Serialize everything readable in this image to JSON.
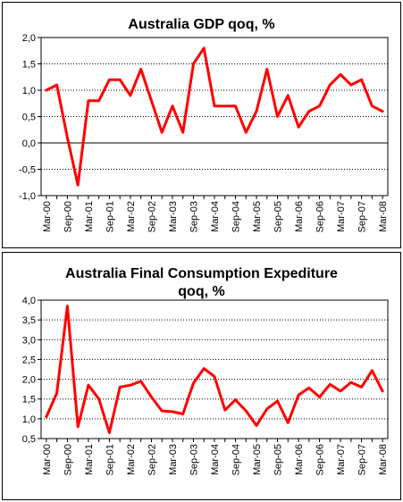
{
  "chart_data": [
    {
      "type": "line",
      "title": "Australia GDP qoq, %",
      "xlabel": "",
      "ylabel": "",
      "ylim": [
        -1.0,
        2.0
      ],
      "yticks": [
        "2,0",
        "1,5",
        "1,0",
        "0,5",
        "0,0",
        "-0,5",
        "-1,0"
      ],
      "grid": true,
      "legend": "none",
      "color": "#ff0000",
      "x_tick_labels": [
        "Mar-00",
        "Sep-00",
        "Mar-01",
        "Sep-01",
        "Mar-02",
        "Sep-02",
        "Mar-03",
        "Sep-03",
        "Mar-04",
        "Sep-04",
        "Mar-05",
        "Sep-05",
        "Mar-06",
        "Sep-06",
        "Mar-07",
        "Sep-07",
        "Mar-08"
      ],
      "x": [
        "Mar-00",
        "Jun-00",
        "Sep-00",
        "Dec-00",
        "Mar-01",
        "Jun-01",
        "Sep-01",
        "Dec-01",
        "Mar-02",
        "Jun-02",
        "Sep-02",
        "Dec-02",
        "Mar-03",
        "Jun-03",
        "Sep-03",
        "Dec-03",
        "Mar-04",
        "Jun-04",
        "Sep-04",
        "Dec-04",
        "Mar-05",
        "Jun-05",
        "Sep-05",
        "Dec-05",
        "Mar-06",
        "Jun-06",
        "Sep-06",
        "Dec-06",
        "Mar-07",
        "Jun-07",
        "Sep-07",
        "Dec-07",
        "Mar-08"
      ],
      "values": [
        1.0,
        1.1,
        0.1,
        -0.8,
        0.8,
        0.8,
        1.2,
        1.2,
        0.9,
        1.4,
        0.8,
        0.2,
        0.7,
        0.2,
        1.5,
        1.8,
        0.7,
        0.7,
        0.7,
        0.2,
        0.6,
        1.4,
        0.5,
        0.9,
        0.3,
        0.6,
        0.7,
        1.1,
        1.3,
        1.1,
        1.2,
        0.7,
        0.6
      ]
    },
    {
      "type": "line",
      "title": "Australia Final Consumption Expediture qoq, %",
      "title_lines": [
        "Australia Final Consumption Expediture",
        "qoq, %"
      ],
      "xlabel": "",
      "ylabel": "",
      "ylim": [
        0.5,
        4.0
      ],
      "yticks": [
        "4,0",
        "3,5",
        "3,0",
        "2,5",
        "2,0",
        "1,5",
        "1,0",
        "0,5"
      ],
      "grid": true,
      "legend": "none",
      "color": "#ff0000",
      "x_tick_labels": [
        "Mar-00",
        "Sep-00",
        "Mar-01",
        "Sep-01",
        "Mar-02",
        "Sep-02",
        "Mar-03",
        "Sep-03",
        "Mar-04",
        "Sep-04",
        "Mar-05",
        "Sep-05",
        "Mar-06",
        "Sep-06",
        "Mar-07",
        "Sep-07",
        "Mar-08"
      ],
      "x": [
        "Mar-00",
        "Jun-00",
        "Sep-00",
        "Dec-00",
        "Mar-01",
        "Jun-01",
        "Sep-01",
        "Dec-01",
        "Mar-02",
        "Jun-02",
        "Sep-02",
        "Dec-02",
        "Mar-03",
        "Jun-03",
        "Sep-03",
        "Dec-03",
        "Mar-04",
        "Jun-04",
        "Sep-04",
        "Dec-04",
        "Mar-05",
        "Jun-05",
        "Sep-05",
        "Dec-05",
        "Mar-06",
        "Jun-06",
        "Sep-06",
        "Dec-06",
        "Mar-07",
        "Jun-07",
        "Sep-07",
        "Dec-07",
        "Mar-08"
      ],
      "values": [
        1.05,
        1.65,
        3.85,
        0.8,
        1.85,
        1.5,
        0.65,
        1.8,
        1.85,
        1.95,
        1.55,
        1.2,
        1.18,
        1.12,
        1.9,
        2.27,
        2.07,
        1.22,
        1.48,
        1.2,
        0.83,
        1.25,
        1.45,
        0.9,
        1.6,
        1.78,
        1.55,
        1.87,
        1.7,
        1.92,
        1.8,
        2.22,
        1.7
      ]
    }
  ]
}
